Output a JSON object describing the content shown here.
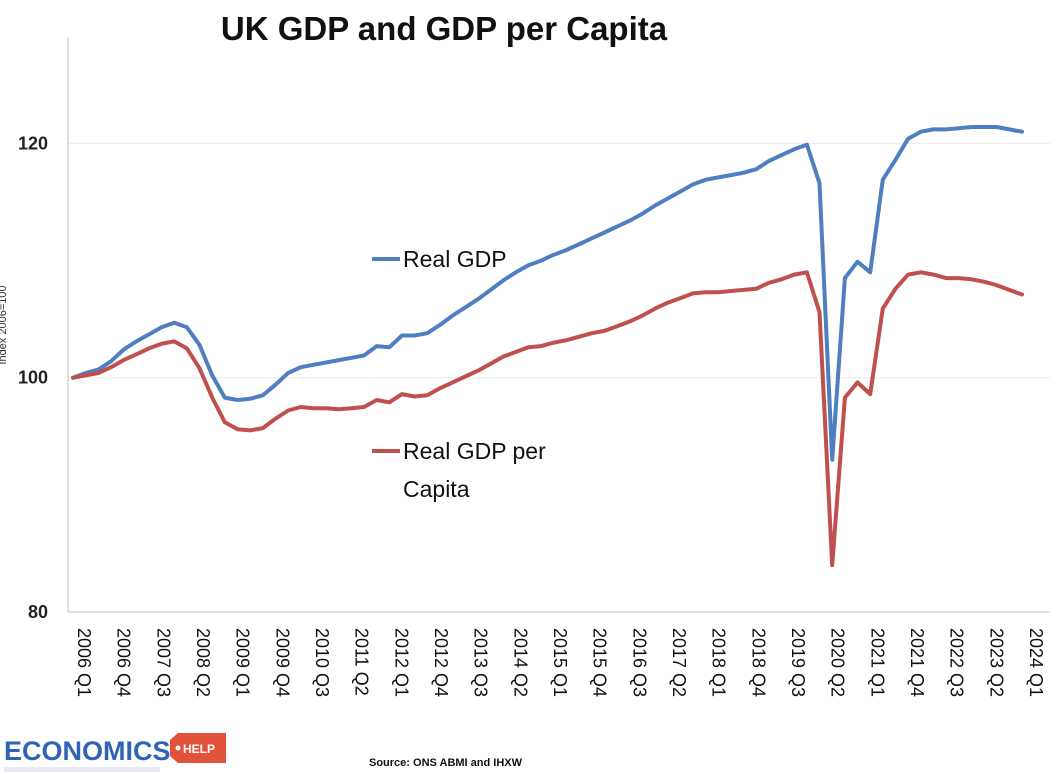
{
  "chart_data": {
    "type": "line",
    "title": "UK GDP and GDP per Capita",
    "xlabel": "",
    "ylabel": "Index 2006=100",
    "ylim": [
      80,
      129
    ],
    "yticks": [
      80,
      100,
      120
    ],
    "x_tick_labels": [
      "2006 Q1",
      "2006 Q4",
      "2007 Q3",
      "2008 Q2",
      "2009 Q1",
      "2009 Q4",
      "2010 Q3",
      "2011 Q2",
      "2012 Q1",
      "2012 Q4",
      "2013 Q3",
      "2014 Q2",
      "2015 Q1",
      "2015 Q4",
      "2016 Q3",
      "2017 Q2",
      "2018 Q1",
      "2018 Q4",
      "2019 Q3",
      "2020 Q2",
      "2021 Q1",
      "2021 Q4",
      "2022 Q3",
      "2023 Q2",
      "2024 Q1"
    ],
    "grid": true,
    "series": [
      {
        "name": "Real GDP",
        "label": "Real GDP",
        "color": "#4f7fc0",
        "values": [
          100.0,
          100.4,
          100.7,
          101.4,
          102.4,
          103.1,
          103.7,
          104.3,
          104.7,
          104.3,
          102.8,
          100.2,
          98.3,
          98.1,
          98.2,
          98.5,
          99.4,
          100.4,
          100.9,
          101.1,
          101.3,
          101.5,
          101.7,
          101.9,
          102.7,
          102.6,
          103.6,
          103.6,
          103.8,
          104.5,
          105.3,
          106.0,
          106.7,
          107.5,
          108.3,
          109.0,
          109.6,
          110.0,
          110.5,
          110.9,
          111.4,
          111.9,
          112.4,
          112.9,
          113.4,
          114.0,
          114.7,
          115.3,
          115.9,
          116.5,
          116.9,
          117.1,
          117.3,
          117.5,
          117.8,
          118.5,
          119.0,
          119.5,
          119.9,
          116.6,
          93.0,
          108.5,
          109.9,
          109.0,
          116.9,
          118.6,
          120.4,
          121.0,
          121.2,
          121.2,
          121.3,
          121.4,
          121.4,
          121.4,
          121.2,
          121.0
        ]
      },
      {
        "name": "Real GDP per Capita",
        "label_line1": "Real GDP per",
        "label_line2": "Capita",
        "color": "#c0504d",
        "values": [
          100.0,
          100.2,
          100.4,
          100.9,
          101.5,
          102.0,
          102.5,
          102.9,
          103.1,
          102.5,
          100.8,
          98.3,
          96.2,
          95.6,
          95.5,
          95.7,
          96.5,
          97.2,
          97.5,
          97.4,
          97.4,
          97.3,
          97.4,
          97.5,
          98.1,
          97.9,
          98.6,
          98.4,
          98.5,
          99.1,
          99.6,
          100.1,
          100.6,
          101.2,
          101.8,
          102.2,
          102.6,
          102.7,
          103.0,
          103.2,
          103.5,
          103.8,
          104.0,
          104.4,
          104.8,
          105.3,
          105.9,
          106.4,
          106.8,
          107.2,
          107.3,
          107.3,
          107.4,
          107.5,
          107.6,
          108.1,
          108.4,
          108.8,
          109.0,
          105.6,
          84.0,
          98.3,
          99.6,
          98.6,
          105.9,
          107.6,
          108.8,
          109.0,
          108.8,
          108.5,
          108.5,
          108.4,
          108.2,
          107.9,
          107.5,
          107.1
        ]
      }
    ]
  },
  "footer": {
    "source": "Source: ONS ABMI and IHXW",
    "logo_text": "ECONOMICS",
    "logo_badge": "HELP"
  }
}
